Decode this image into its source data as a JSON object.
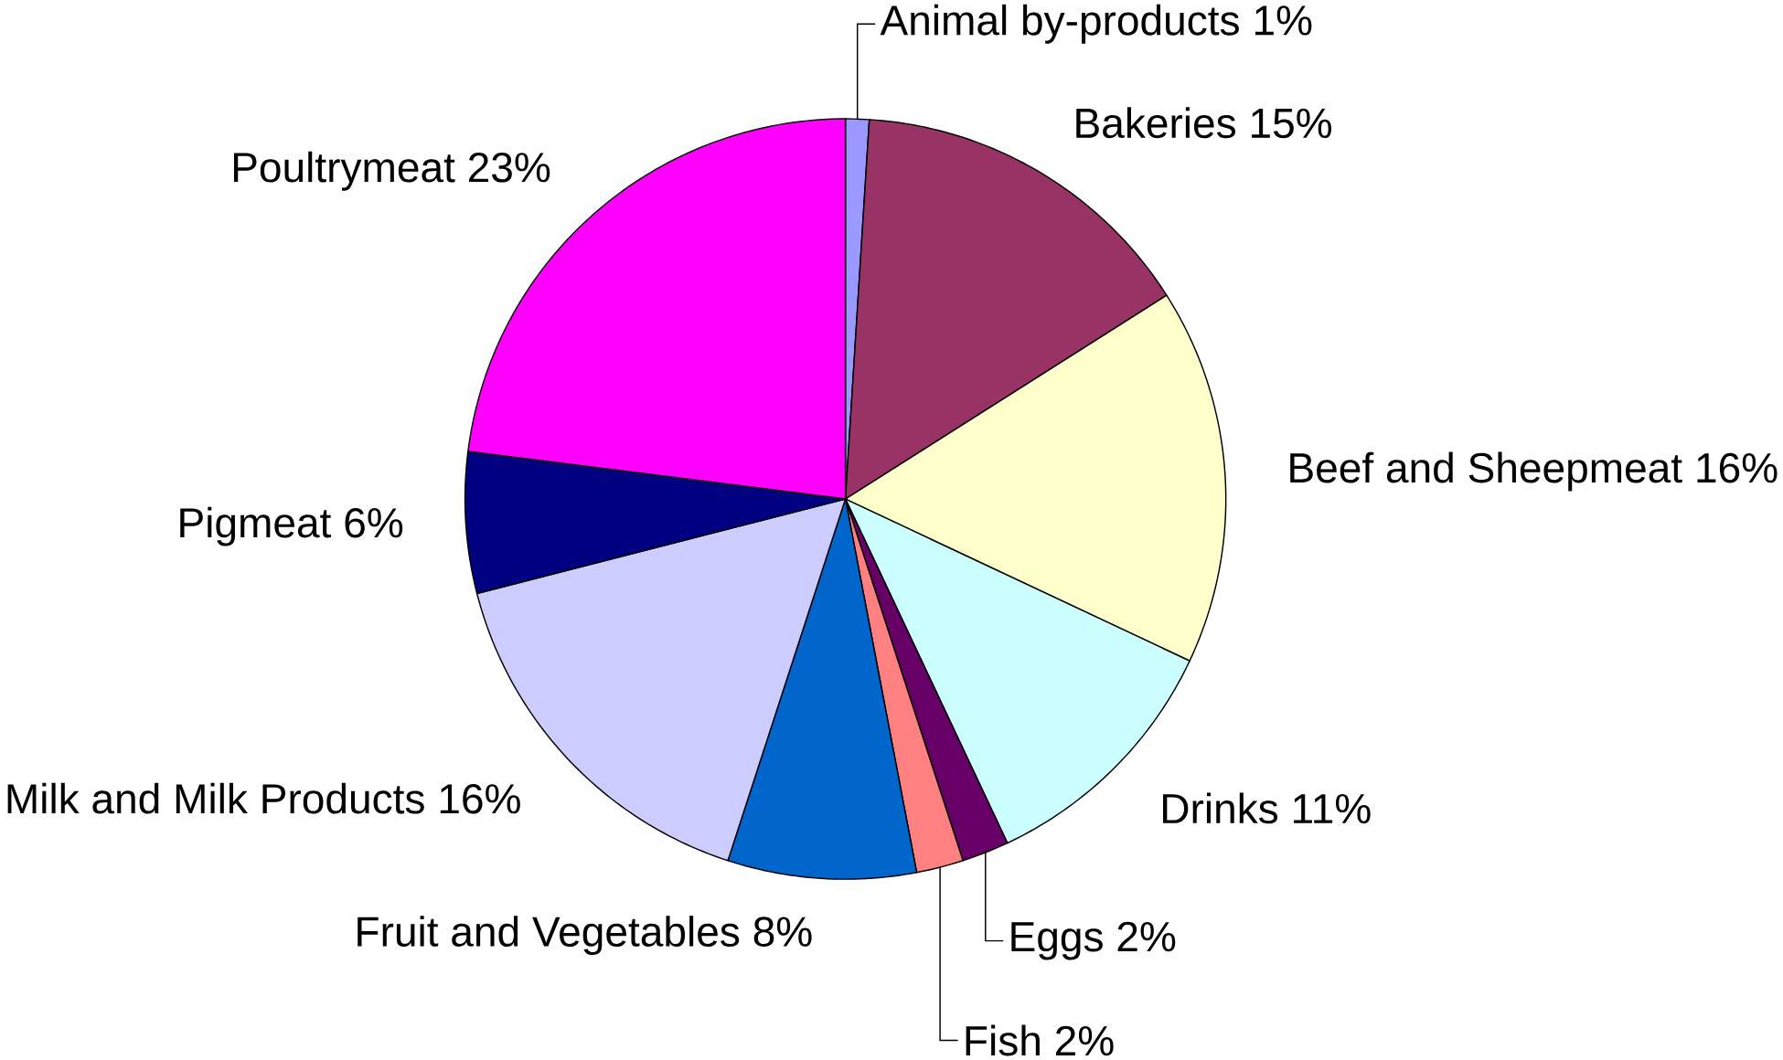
{
  "chart_data": {
    "type": "pie",
    "categories": [
      "Animal by-products",
      "Bakeries",
      "Beef and Sheepmeat",
      "Drinks",
      "Eggs",
      "Fish",
      "Fruit and Vegetables",
      "Milk and Milk Products",
      "Pigmeat",
      "Poultrymeat"
    ],
    "values": [
      1,
      15,
      16,
      11,
      2,
      2,
      8,
      16,
      6,
      23
    ],
    "value_labels": [
      "1%",
      "15%",
      "16%",
      "11%",
      "2%",
      "2%",
      "8%",
      "16%",
      "6%",
      "23%"
    ],
    "colors": [
      "#9999ff",
      "#993366",
      "#ffffcc",
      "#ccffff",
      "#660066",
      "#ff8080",
      "#0066cc",
      "#ccccff",
      "#000080",
      "#ff00ff"
    ]
  }
}
